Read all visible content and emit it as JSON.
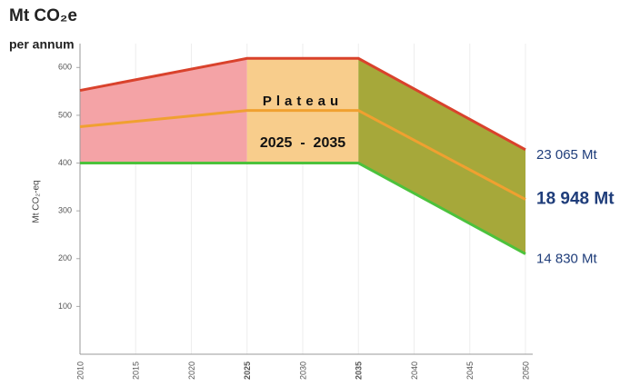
{
  "chart_data": {
    "type": "line",
    "title": "Mt CO₂e",
    "subtitle": "per annum",
    "y_label": "Mt CO₂-eq",
    "x": [
      2010,
      2025,
      2035,
      2050
    ],
    "series": [
      {
        "color": "#d9422c",
        "values": [
          552,
          619,
          619,
          428
        ],
        "end_label": "23 065 Mt"
      },
      {
        "color": "#f0a030",
        "values": [
          476,
          510,
          510,
          324
        ],
        "end_label": "18 948 Mt"
      },
      {
        "color": "#4cc23c",
        "values": [
          400,
          400,
          400,
          210
        ],
        "end_label": "14 830 Mt"
      }
    ],
    "region_colors": [
      "#f4a3a6",
      "#f8cd8c",
      "#a6a83a"
    ],
    "annotations": [
      "Plateau",
      "2025  -  2035"
    ],
    "xlim": [
      2010,
      2050
    ],
    "xticks": [
      2010,
      2015,
      2020,
      2025,
      2030,
      2035,
      2040,
      2045,
      2050
    ],
    "bold_xticks": [
      2025,
      2035
    ],
    "ylim": [
      0,
      650
    ],
    "yticks": [
      100,
      200,
      300,
      400,
      500,
      600
    ],
    "grid": true
  }
}
